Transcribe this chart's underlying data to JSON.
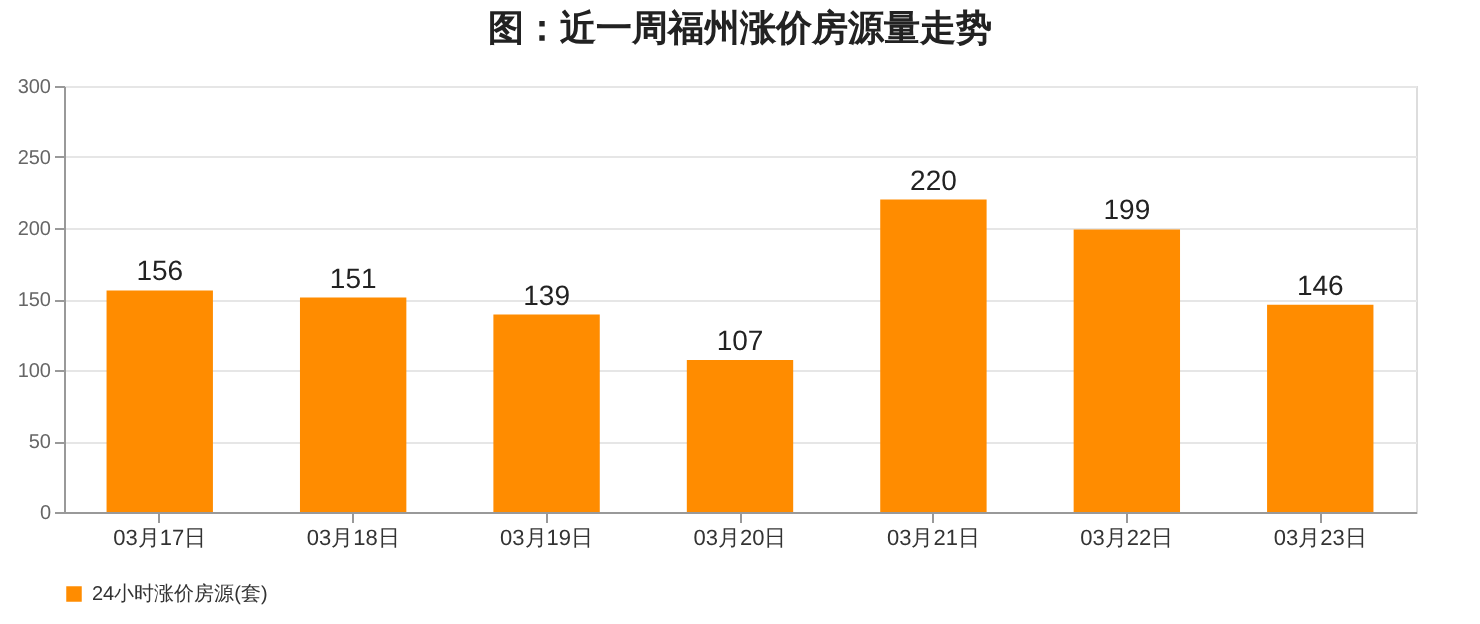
{
  "chart_data": {
    "type": "bar",
    "title": "图：近一周福州涨价房源量走势",
    "categories": [
      "03月17日",
      "03月18日",
      "03月19日",
      "03月20日",
      "03月21日",
      "03月22日",
      "03月23日"
    ],
    "series": [
      {
        "name": "24小时涨价房源(套)",
        "color": "#ff8c00",
        "values": [
          156,
          151,
          139,
          107,
          220,
          199,
          146
        ]
      }
    ],
    "ylim": [
      0,
      300
    ],
    "yticks": [
      0,
      50,
      100,
      150,
      200,
      250,
      300
    ],
    "grid": "y",
    "legend": "bottom",
    "data_labels": true
  }
}
